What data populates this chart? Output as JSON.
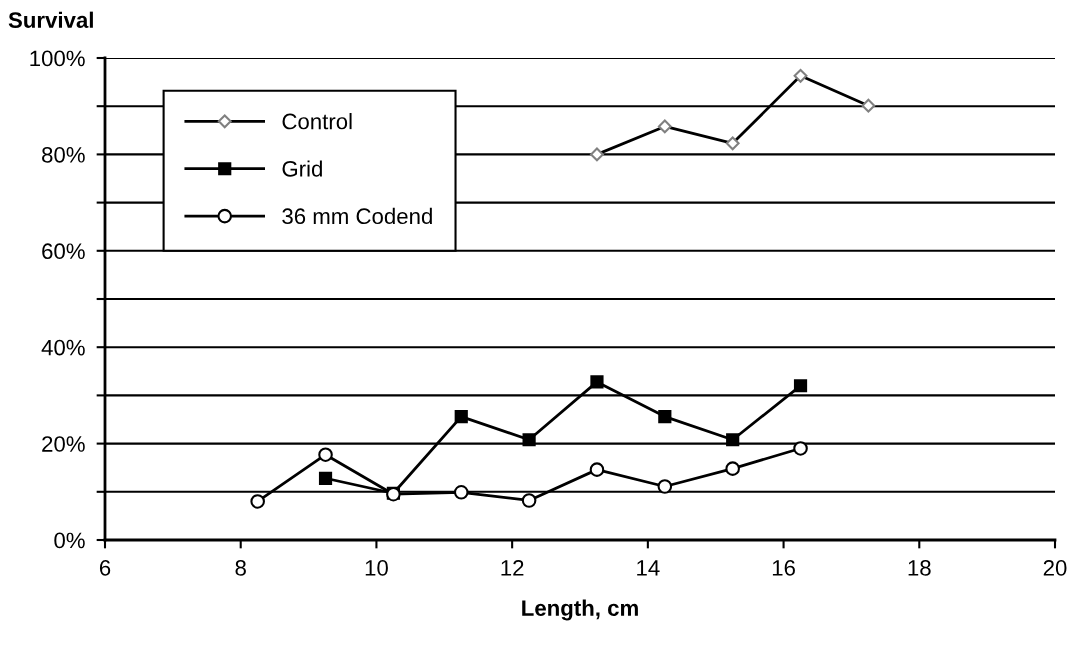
{
  "chart_data": {
    "type": "line",
    "ylabel": "Survival",
    "xlabel": "Length, cm",
    "xlim": [
      6,
      20
    ],
    "xticks": [
      6,
      8,
      10,
      12,
      14,
      16,
      18,
      20
    ],
    "ylim": [
      0,
      100
    ],
    "yticks": [
      {
        "value": 0,
        "label": "0%"
      },
      {
        "value": 10,
        "label": null
      },
      {
        "value": 20,
        "label": "20%"
      },
      {
        "value": 30,
        "label": null
      },
      {
        "value": 40,
        "label": "40%"
      },
      {
        "value": 50,
        "label": null
      },
      {
        "value": 60,
        "label": "60%"
      },
      {
        "value": 70,
        "label": null
      },
      {
        "value": 80,
        "label": "80%"
      },
      {
        "value": 90,
        "label": null
      },
      {
        "value": 100,
        "label": "100%"
      }
    ],
    "grid": "y",
    "legend": "top left",
    "line_style": "solid",
    "series": [
      {
        "name": "Control",
        "color": "#000000",
        "marker": "diamond",
        "x": [
          13.25,
          14.25,
          15.25,
          16.25,
          17.25
        ],
        "values": [
          80.0,
          85.8,
          82.3,
          96.3,
          90.1
        ]
      },
      {
        "name": "Grid",
        "color": "#000000",
        "marker": "square",
        "x": [
          9.25,
          10.25,
          11.25,
          12.25,
          13.25,
          14.25,
          15.25,
          16.25
        ],
        "values": [
          12.8,
          9.7,
          25.6,
          20.8,
          32.8,
          25.6,
          20.8,
          32.0
        ]
      },
      {
        "name": "36 mm Codend",
        "color": "#000000",
        "marker": "circle",
        "x": [
          8.25,
          9.25,
          10.25,
          11.25,
          12.25,
          13.25,
          14.25,
          15.25,
          16.25
        ],
        "values": [
          8.0,
          17.7,
          9.5,
          9.9,
          8.2,
          14.6,
          11.1,
          14.8,
          19.0
        ]
      }
    ]
  }
}
